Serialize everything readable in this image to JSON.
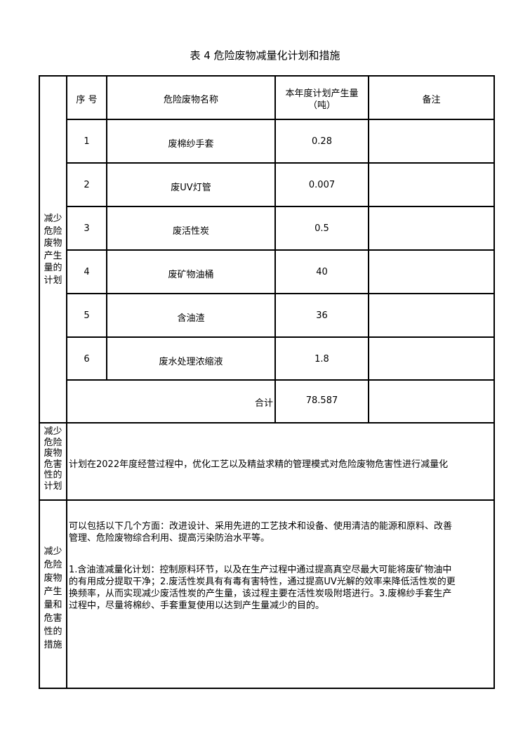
{
  "title": "表 4  危险废物减量化计划和措施",
  "table": {
    "headers": [
      "序 号",
      "危险废物名称",
      "本年度计划产生量",
      "（吨）",
      "备注"
    ],
    "rows": [
      {
        "no": "1",
        "name": "废棉纱手套",
        "amount": "0.28",
        "note": ""
      },
      {
        "no": "2",
        "name": "废UV灯管",
        "amount": "0.007",
        "note": ""
      },
      {
        "no": "3",
        "name": "废活性炭",
        "amount": "0.5",
        "note": ""
      },
      {
        "no": "4",
        "name": "废矿物油桶",
        "amount": "40",
        "note": ""
      },
      {
        "no": "5",
        "name": "含油渣",
        "amount": "36",
        "note": ""
      },
      {
        "no": "6",
        "name": "废水处理浓缩液",
        "amount": "1.8",
        "note": ""
      }
    ],
    "total_label": "合计",
    "total_value": "78.587"
  },
  "sections": {
    "reduce_amount_label": [
      "减少",
      "危险",
      "废物",
      "产生",
      "量的",
      "计划"
    ],
    "reduce_hazard_label": [
      "减少",
      "危险",
      "废物",
      "危害",
      "性的",
      "计划"
    ],
    "reduce_hazard_text": "计划在2022年度经营过程中，优化工艺以及精益求精的管理模式对危险废物危害性进行减量化",
    "measures_label": [
      "减少",
      "危险",
      "废物",
      "产生",
      "量和",
      "危害",
      "性的",
      "措施"
    ],
    "measures_para1": [
      "可以包括以下几个方面：改进设计、采用先进的工艺技术和设备、使用清洁的能源和原料、改善",
      "管理、危险废物综合利用、提高污染防治水平等。"
    ],
    "measures_para2": [
      "1.含油渣减量化计划：控制原料环节，以及在生产过程中通过提高真空尽最大可能将废矿物油中",
      "的有用成分提取干净；2.废活性炭具有有毒有害特性，通过提高UV光解的效率来降低活性炭的更",
      "换频率，从而实现减少废活性炭的产生量，该过程主要在活性炭吸附塔进行。3.废棉纱手套生产",
      "过程中，尽量将棉纱、手套重复使用以达到产生量减少的目的。"
    ]
  }
}
